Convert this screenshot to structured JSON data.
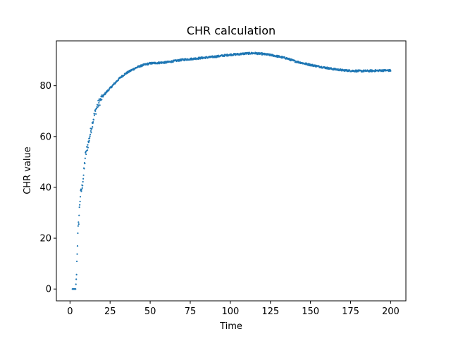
{
  "chart_data": {
    "type": "scatter",
    "title": "CHR calculation",
    "xlabel": "Time",
    "ylabel": "CHR value",
    "xlim": [
      -8.5,
      209.5
    ],
    "ylim": [
      -4.65,
      97.65
    ],
    "xticks": [
      0,
      25,
      50,
      75,
      100,
      125,
      150,
      175,
      200
    ],
    "yticks": [
      0,
      20,
      40,
      60,
      80
    ],
    "grid": false,
    "marker_color": "#1f77b4",
    "anchors": [
      [
        1.5,
        0
      ],
      [
        3.5,
        0
      ],
      [
        4,
        5
      ],
      [
        4.5,
        15
      ],
      [
        5,
        23
      ],
      [
        5.5,
        27
      ],
      [
        6,
        33
      ],
      [
        6.5,
        37
      ],
      [
        7.5,
        40
      ],
      [
        8.5,
        45
      ],
      [
        9.5,
        52
      ],
      [
        10.5,
        55
      ],
      [
        12,
        59
      ],
      [
        13.5,
        64
      ],
      [
        15,
        68
      ],
      [
        17,
        72
      ],
      [
        19.5,
        75
      ],
      [
        22,
        77
      ],
      [
        25,
        79
      ],
      [
        28,
        81
      ],
      [
        31,
        83
      ],
      [
        34,
        84.5
      ],
      [
        38,
        86
      ],
      [
        42,
        87.3
      ],
      [
        46,
        88.2
      ],
      [
        50,
        88.8
      ],
      [
        55,
        89
      ],
      [
        60,
        89.2
      ],
      [
        65,
        89.7
      ],
      [
        70,
        90.2
      ],
      [
        75,
        90.5
      ],
      [
        80,
        90.8
      ],
      [
        85,
        91.1
      ],
      [
        90,
        91.4
      ],
      [
        95,
        91.8
      ],
      [
        100,
        92.2
      ],
      [
        105,
        92.4
      ],
      [
        110,
        92.7
      ],
      [
        115,
        92.8
      ],
      [
        120,
        92.5
      ],
      [
        125,
        92.1
      ],
      [
        130,
        91.5
      ],
      [
        135,
        90.8
      ],
      [
        140,
        89.7
      ],
      [
        145,
        88.9
      ],
      [
        150,
        88.2
      ],
      [
        155,
        87.6
      ],
      [
        160,
        87
      ],
      [
        165,
        86.5
      ],
      [
        170,
        86.1
      ],
      [
        175,
        85.9
      ],
      [
        180,
        85.8
      ],
      [
        185,
        85.8
      ],
      [
        190,
        85.9
      ],
      [
        195,
        86
      ],
      [
        200,
        86
      ]
    ]
  }
}
